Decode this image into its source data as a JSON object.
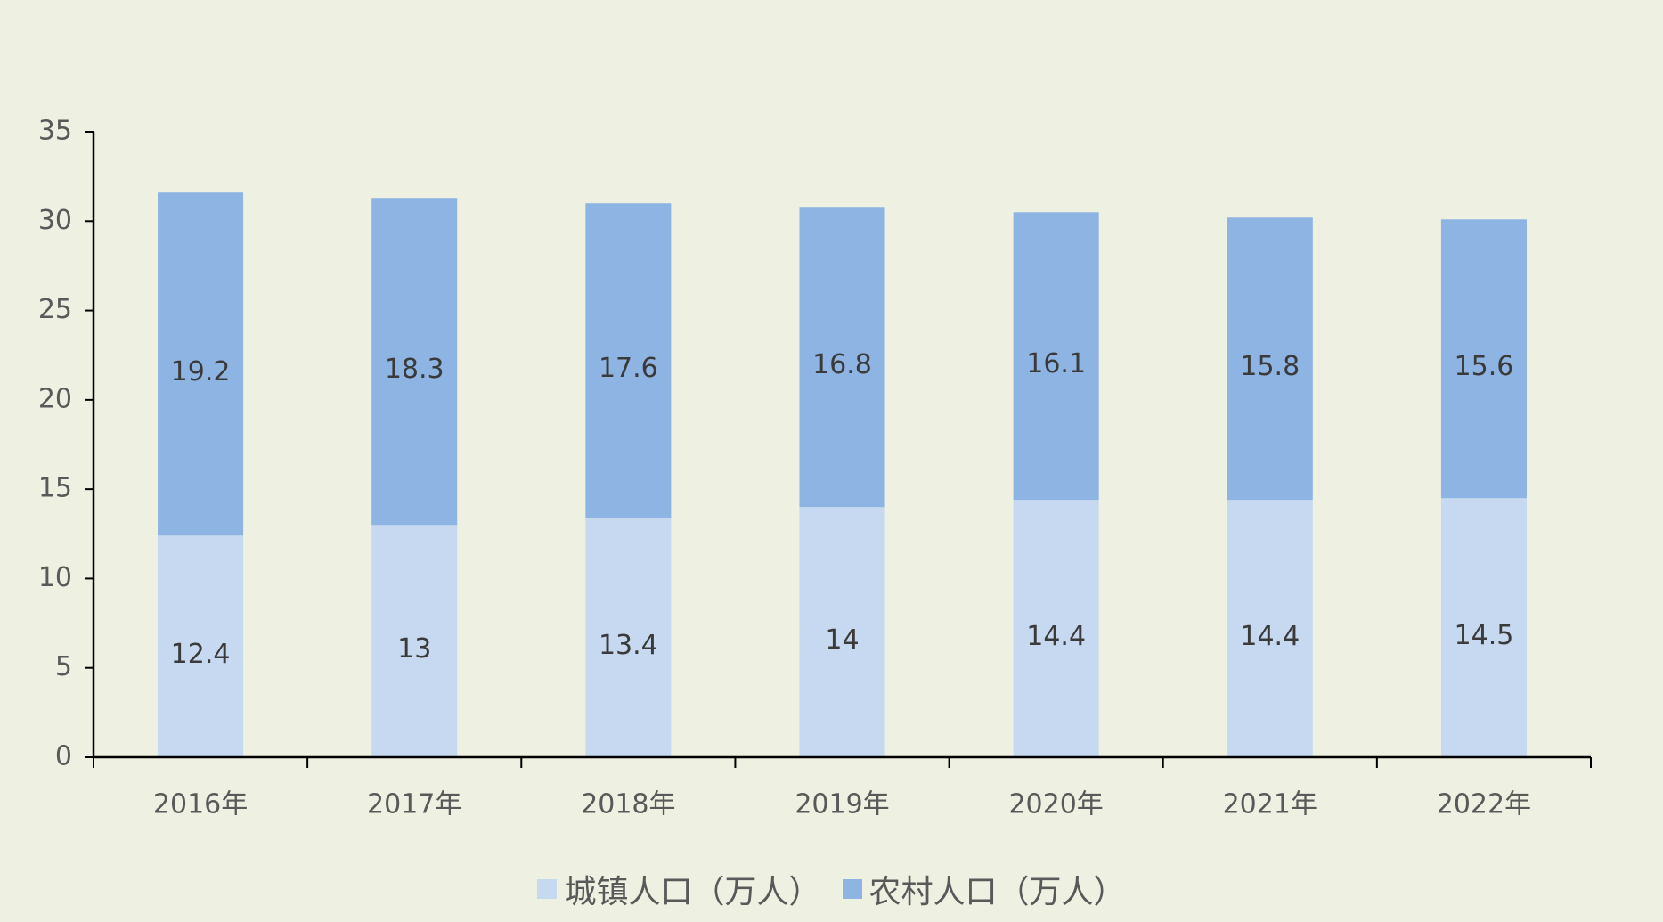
{
  "chart_data": {
    "type": "stacked_bar",
    "categories": [
      "2016年",
      "2017年",
      "2018年",
      "2019年",
      "2020年",
      "2021年",
      "2022年"
    ],
    "series": [
      {
        "name": "城镇人口（万人）",
        "color": "#c6d9f1",
        "values": [
          12.4,
          13,
          13.4,
          14,
          14.4,
          14.4,
          14.5
        ]
      },
      {
        "name": "农村人口（万人）",
        "color": "#8eb4e3",
        "values": [
          19.2,
          18.3,
          17.6,
          16.8,
          16.1,
          15.8,
          15.6
        ]
      }
    ],
    "ylim": [
      0,
      35
    ],
    "yticks": [
      0,
      5,
      10,
      15,
      20,
      25,
      30,
      35
    ],
    "grid": false,
    "legend": "bottom"
  }
}
